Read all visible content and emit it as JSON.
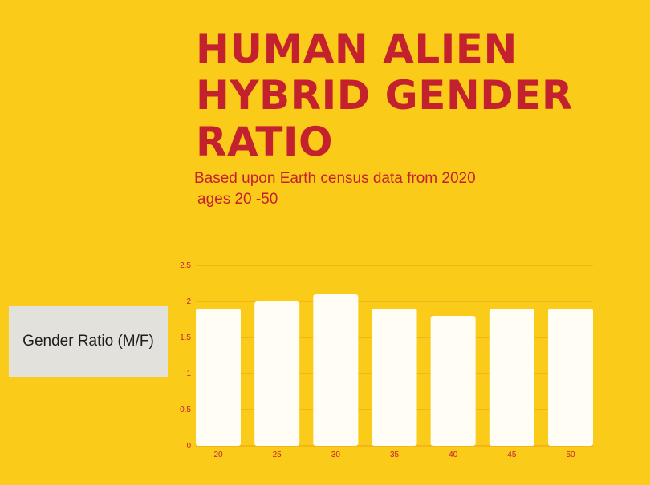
{
  "title": "HUMAN ALIEN HYBRID GENDER RATIO",
  "subtitle": {
    "line1": "Based upon Earth census data from 2020",
    "line2": "ages 20 -50"
  },
  "legend": {
    "label": "Gender Ratio (M/F)"
  },
  "colors": {
    "background": "#FBCB1A",
    "title": "#C4212F",
    "bar": "#FFFDF4",
    "gridline": "#E8A21A",
    "legend_box": "#E3E1DC"
  },
  "chart_data": {
    "type": "bar",
    "title": "HUMAN ALIEN HYBRID GENDER RATIO",
    "categories": [
      "20",
      "25",
      "30",
      "35",
      "40",
      "45",
      "50"
    ],
    "series": [
      {
        "name": "Gender Ratio (M/F)",
        "values": [
          1.9,
          2.0,
          2.1,
          1.9,
          1.8,
          1.9,
          1.9
        ]
      }
    ],
    "y_ticks": [
      "0",
      "0.5",
      "1",
      "1.5",
      "2",
      "2.5"
    ],
    "ylim": [
      0,
      2.5
    ],
    "grid": true,
    "legend_position": "left"
  }
}
